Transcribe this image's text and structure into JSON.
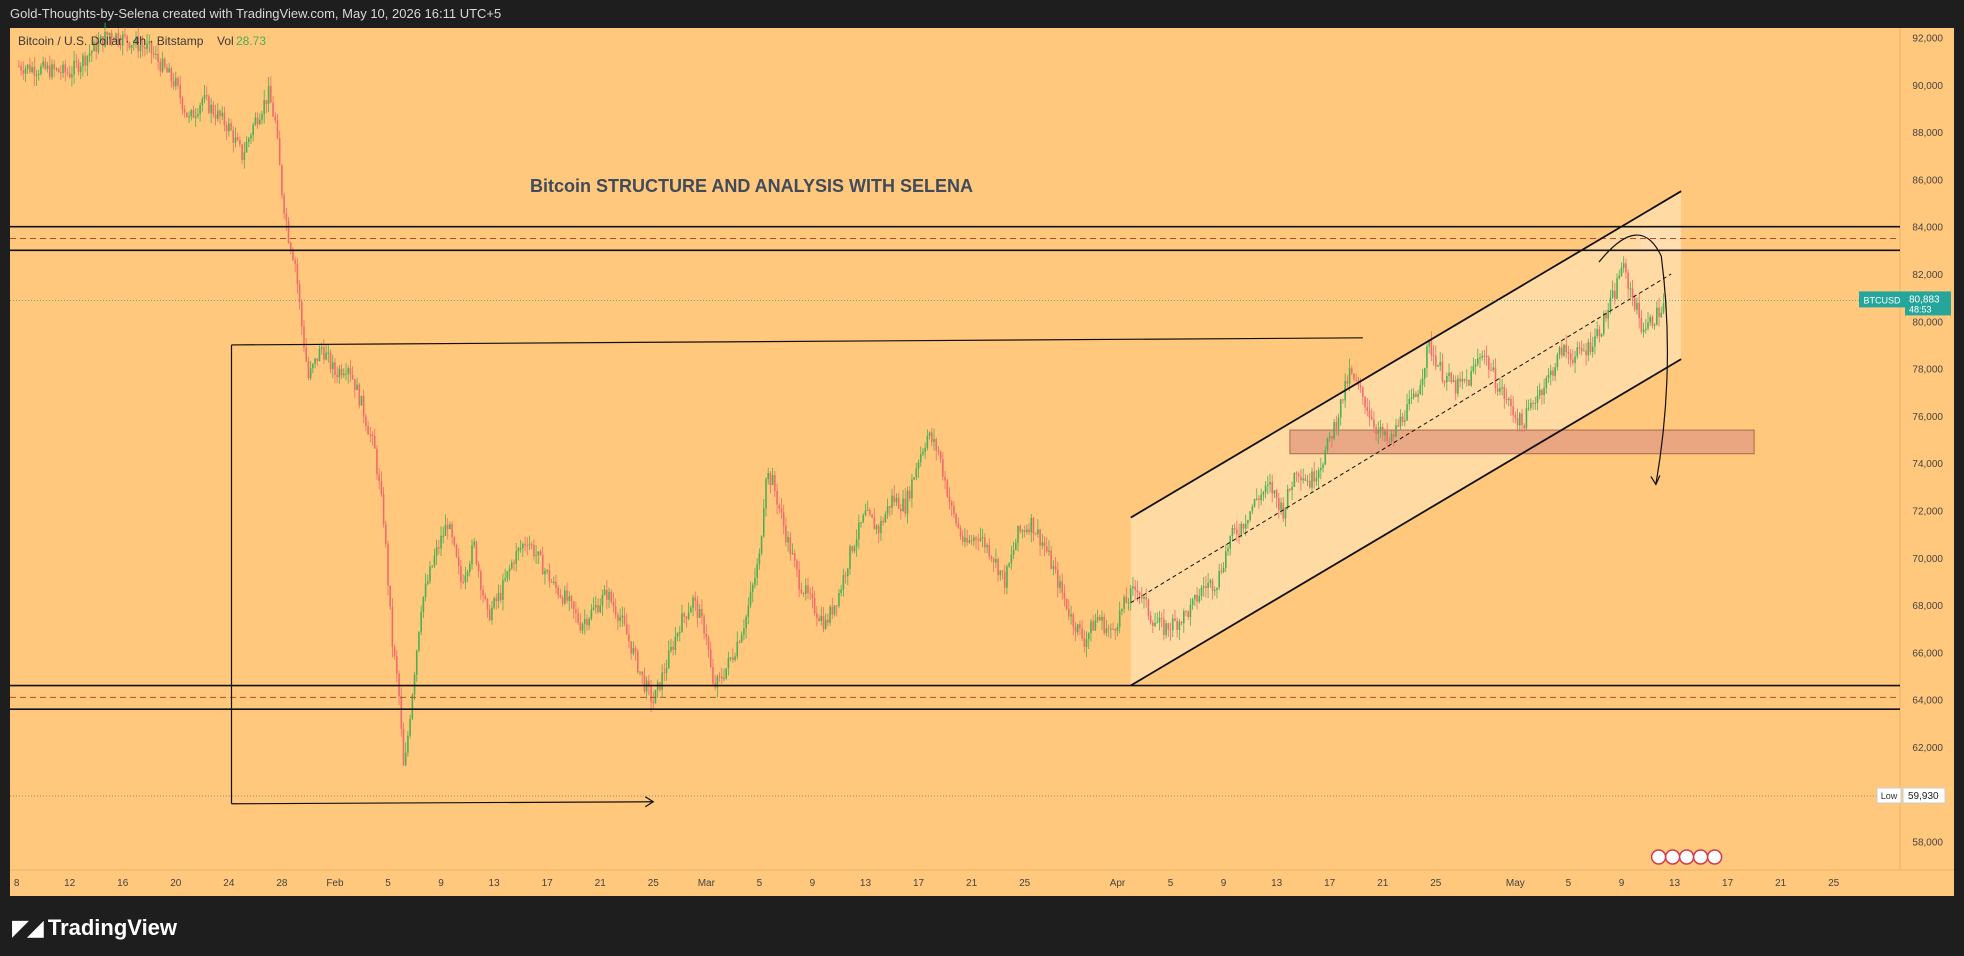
{
  "header": {
    "caption": "Gold-Thoughts-by-Selena created with TradingView.com, May 10, 2026 16:11 UTC+5"
  },
  "legend": {
    "symbol": "Bitcoin / U.S. Dollar · 4h · Bitstamp",
    "vol_label": "Vol",
    "vol_value": "28.73"
  },
  "footer": {
    "brand": "TradingView"
  },
  "colors": {
    "background": "#ffc87c",
    "up_candle": "#4caf50",
    "down_candle": "#f06b6b",
    "channel_fill": "#ffe0b0",
    "zone_fill": "#e6a183",
    "price_tag": "#26a69a"
  },
  "chart_data": {
    "type": "candlestick",
    "title": "Bitcoin STRUCTURE AND ANALYSIS WITH SELENA",
    "symbol": "BTCUSD",
    "timeframe": "4h",
    "exchange": "Bitstamp",
    "ylim": [
      56800,
      92400
    ],
    "y_ticks": [
      "58,000",
      "60,000",
      "62,000",
      "64,000",
      "66,000",
      "68,000",
      "70,000",
      "72,000",
      "74,000",
      "76,000",
      "78,000",
      "80,000",
      "82,000",
      "84,000",
      "86,000",
      "88,000",
      "90,000",
      "92,000"
    ],
    "y_tick_values": [
      58000,
      60000,
      62000,
      64000,
      66000,
      68000,
      70000,
      72000,
      74000,
      76000,
      78000,
      80000,
      82000,
      84000,
      86000,
      88000,
      90000,
      92000
    ],
    "x_ticks": [
      {
        "label": "8",
        "day": -24
      },
      {
        "label": "12",
        "day": -20
      },
      {
        "label": "16",
        "day": -16
      },
      {
        "label": "20",
        "day": -12
      },
      {
        "label": "24",
        "day": -8
      },
      {
        "label": "28",
        "day": -4
      },
      {
        "label": "Feb",
        "day": 0
      },
      {
        "label": "5",
        "day": 4
      },
      {
        "label": "9",
        "day": 8
      },
      {
        "label": "13",
        "day": 12
      },
      {
        "label": "17",
        "day": 16
      },
      {
        "label": "21",
        "day": 20
      },
      {
        "label": "25",
        "day": 24
      },
      {
        "label": "Mar",
        "day": 28
      },
      {
        "label": "5",
        "day": 32
      },
      {
        "label": "9",
        "day": 36
      },
      {
        "label": "13",
        "day": 40
      },
      {
        "label": "17",
        "day": 44
      },
      {
        "label": "21",
        "day": 48
      },
      {
        "label": "25",
        "day": 52
      },
      {
        "label": "Apr",
        "day": 59
      },
      {
        "label": "5",
        "day": 63
      },
      {
        "label": "9",
        "day": 67
      },
      {
        "label": "13",
        "day": 71
      },
      {
        "label": "17",
        "day": 75
      },
      {
        "label": "21",
        "day": 79
      },
      {
        "label": "25",
        "day": 83
      },
      {
        "label": "May",
        "day": 89
      },
      {
        "label": "5",
        "day": 93
      },
      {
        "label": "9",
        "day": 97
      },
      {
        "label": "13",
        "day": 101
      },
      {
        "label": "17",
        "day": 105
      },
      {
        "label": "21",
        "day": 109
      },
      {
        "label": "25",
        "day": 113
      }
    ],
    "price_path": [
      [
        -24,
        90800
      ],
      [
        -20,
        90500
      ],
      [
        -17,
        92200
      ],
      [
        -14,
        91500
      ],
      [
        -12,
        90000
      ],
      [
        -11,
        88500
      ],
      [
        -10,
        89400
      ],
      [
        -8,
        88200
      ],
      [
        -7,
        87000
      ],
      [
        -6,
        88500
      ],
      [
        -5,
        89600
      ],
      [
        -4.5,
        88400
      ],
      [
        -4,
        85500
      ],
      [
        -3.5,
        83600
      ],
      [
        -3,
        82500
      ],
      [
        -2.5,
        79800
      ],
      [
        -2,
        77600
      ],
      [
        -1,
        78900
      ],
      [
        0,
        77800
      ],
      [
        1,
        78200
      ],
      [
        2,
        76500
      ],
      [
        3,
        74500
      ],
      [
        3.7,
        71500
      ],
      [
        4.3,
        66500
      ],
      [
        4.8,
        64400
      ],
      [
        5.2,
        60800
      ],
      [
        5.8,
        64200
      ],
      [
        6.5,
        68000
      ],
      [
        7.5,
        70000
      ],
      [
        8.5,
        71500
      ],
      [
        9.5,
        69000
      ],
      [
        10.5,
        70500
      ],
      [
        11.5,
        67500
      ],
      [
        12.5,
        68500
      ],
      [
        13.5,
        70000
      ],
      [
        14.5,
        70800
      ],
      [
        15.5,
        69800
      ],
      [
        16.5,
        68800
      ],
      [
        17.5,
        68200
      ],
      [
        18.5,
        67200
      ],
      [
        19.5,
        67800
      ],
      [
        20.5,
        68500
      ],
      [
        21.5,
        67500
      ],
      [
        22.5,
        66000
      ],
      [
        23.3,
        64700
      ],
      [
        24,
        63900
      ],
      [
        25,
        65500
      ],
      [
        26,
        67200
      ],
      [
        27,
        68200
      ],
      [
        28,
        66800
      ],
      [
        28.5,
        64500
      ],
      [
        29,
        64800
      ],
      [
        30,
        65900
      ],
      [
        31,
        67500
      ],
      [
        32,
        70000
      ],
      [
        32.5,
        73600
      ],
      [
        33,
        73200
      ],
      [
        34,
        71000
      ],
      [
        35,
        69000
      ],
      [
        36,
        68000
      ],
      [
        37,
        67200
      ],
      [
        38,
        68500
      ],
      [
        39,
        70500
      ],
      [
        40,
        71800
      ],
      [
        41,
        71200
      ],
      [
        42,
        72500
      ],
      [
        43,
        72200
      ],
      [
        44,
        74200
      ],
      [
        44.7,
        75200
      ],
      [
        45.5,
        74500
      ],
      [
        46.5,
        72000
      ],
      [
        47.5,
        70500
      ],
      [
        48.5,
        71000
      ],
      [
        49.5,
        70200
      ],
      [
        50.5,
        69000
      ],
      [
        51.5,
        71000
      ],
      [
        52.5,
        71500
      ],
      [
        53.5,
        70500
      ],
      [
        54.5,
        69000
      ],
      [
        55.5,
        67500
      ],
      [
        56.5,
        66500
      ],
      [
        57.5,
        67500
      ],
      [
        58.5,
        66800
      ],
      [
        59.5,
        68000
      ],
      [
        60.5,
        68800
      ],
      [
        61.5,
        67500
      ],
      [
        62.5,
        67000
      ],
      [
        63.5,
        67300
      ],
      [
        64.5,
        67800
      ],
      [
        65.5,
        68800
      ],
      [
        66.5,
        69000
      ],
      [
        67.5,
        70800
      ],
      [
        68.5,
        71500
      ],
      [
        69.5,
        72500
      ],
      [
        70.5,
        73000
      ],
      [
        71.5,
        72000
      ],
      [
        72.5,
        73800
      ],
      [
        73.5,
        73200
      ],
      [
        74.5,
        74200
      ],
      [
        75.5,
        75800
      ],
      [
        76.5,
        77800
      ],
      [
        77.5,
        76800
      ],
      [
        78.5,
        75500
      ],
      [
        79.5,
        74800
      ],
      [
        80.5,
        76000
      ],
      [
        81.5,
        76800
      ],
      [
        82.5,
        79000
      ],
      [
        83.5,
        77800
      ],
      [
        84.5,
        77200
      ],
      [
        85.5,
        77500
      ],
      [
        86.5,
        78800
      ],
      [
        87.5,
        77500
      ],
      [
        88.5,
        76500
      ],
      [
        89.5,
        75600
      ],
      [
        90.5,
        76800
      ],
      [
        91.5,
        77600
      ],
      [
        92.5,
        78800
      ],
      [
        93.5,
        78500
      ],
      [
        94.5,
        78900
      ],
      [
        95.5,
        79800
      ],
      [
        96.5,
        81200
      ],
      [
        97,
        82400
      ],
      [
        97.5,
        81600
      ],
      [
        98,
        80800
      ],
      [
        98.5,
        79800
      ],
      [
        99,
        79800
      ],
      [
        99.5,
        80200
      ],
      [
        100,
        80500
      ],
      [
        100.5,
        80900
      ]
    ],
    "horizontal_bands": [
      {
        "name": "resistance",
        "top": 84000,
        "bottom": 83000,
        "mid": 83500
      },
      {
        "name": "support",
        "top": 64600,
        "bottom": 63600,
        "mid": 64100
      }
    ],
    "ascending_channel": {
      "start_day": 60,
      "end_day": 101.5,
      "upper": [
        71700,
        85500
      ],
      "middle": [
        68100,
        82000
      ],
      "lower": [
        64600,
        78400
      ]
    },
    "demand_zone": {
      "x_start_day": 72,
      "x_end_day": 107,
      "top": 75400,
      "bottom": 74400
    },
    "range_box": {
      "left_day": -7.8,
      "top": 79000,
      "bottom": 59600,
      "right_day": 77.5,
      "right_top": 79300,
      "arrow_end_day": 24
    },
    "projection_arrow": {
      "from_day": 95.3,
      "from_price": 82500,
      "peak_day": 98.4,
      "peak_price": 83600,
      "to_day": 100.8,
      "to_price": 73100
    },
    "last_price": {
      "symbol": "BTCUSD",
      "value": "80,883",
      "countdown": "48:53",
      "price": 80883
    },
    "low_marker": {
      "label": "Low",
      "value": "59,930",
      "price": 59930
    }
  }
}
